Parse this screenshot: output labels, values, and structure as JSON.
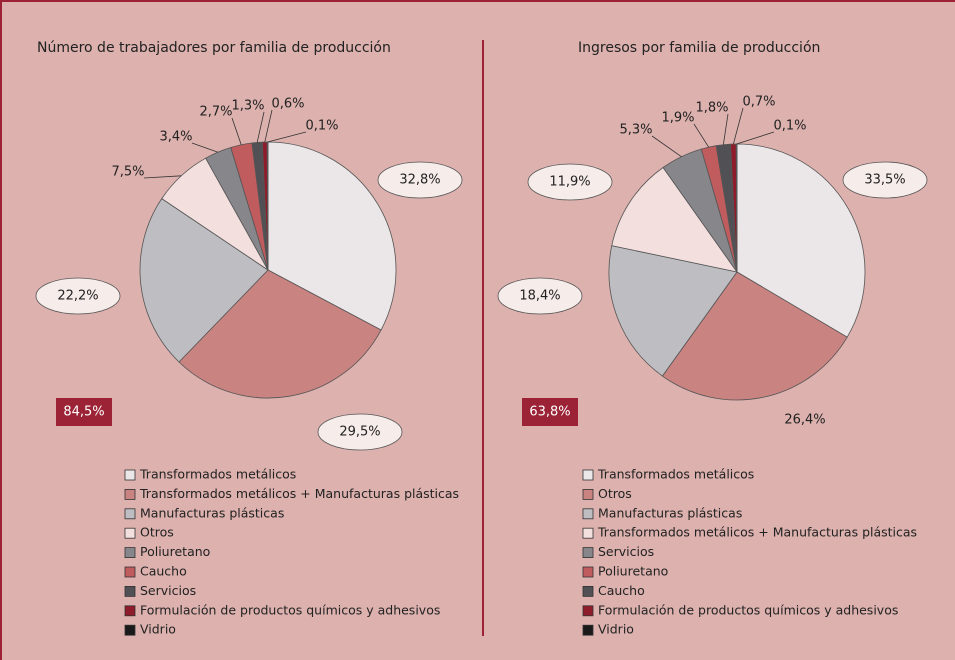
{
  "chart_data": [
    {
      "type": "pie",
      "title": "Número de trabajadores por familia de producción",
      "categories": [
        "Transformados metálicos",
        "Transformados metálicos + Manufacturas plásticas",
        "Manufacturas plásticas",
        "Otros",
        "Poliuretano",
        "Caucho",
        "Servicios",
        "Formulación de productos químicos y adhesivos",
        "Vidrio"
      ],
      "values": [
        32.8,
        29.5,
        22.2,
        7.5,
        3.4,
        2.7,
        1.3,
        0.6,
        0.1
      ],
      "value_labels": [
        "32,8%",
        "29,5%",
        "22,2%",
        "7,5%",
        "3,4%",
        "2,7%",
        "1,3%",
        "0,6%",
        "0,1%"
      ],
      "colors": [
        "#ebe6e8",
        "#c98381",
        "#bebdc1",
        "#f2dfde",
        "#87868b",
        "#c05b5e",
        "#505055",
        "#8e1c2b",
        "#1a1a1a"
      ],
      "annotation": "84,5%"
    },
    {
      "type": "pie",
      "title": "Ingresos por familia de producción",
      "categories": [
        "Transformados metálicos",
        "Otros",
        "Manufacturas plásticas",
        "Transformados metálicos + Manufacturas plásticas",
        "Servicios",
        "Poliuretano",
        "Caucho",
        "Formulación de productos químicos y adhesivos",
        "Vidrio"
      ],
      "values": [
        33.5,
        26.4,
        18.4,
        11.9,
        5.3,
        1.9,
        1.8,
        0.7,
        0.1
      ],
      "value_labels": [
        "33,5%",
        "26,4%",
        "18,4%",
        "11,9%",
        "5,3%",
        "1,9%",
        "1,8%",
        "0,7%",
        "0,1%"
      ],
      "colors": [
        "#ebe6e8",
        "#c98381",
        "#bebdc1",
        "#f2dfde",
        "#87868b",
        "#c05b5e",
        "#505055",
        "#8e1c2b",
        "#1a1a1a"
      ],
      "annotation": "63,8%"
    }
  ]
}
